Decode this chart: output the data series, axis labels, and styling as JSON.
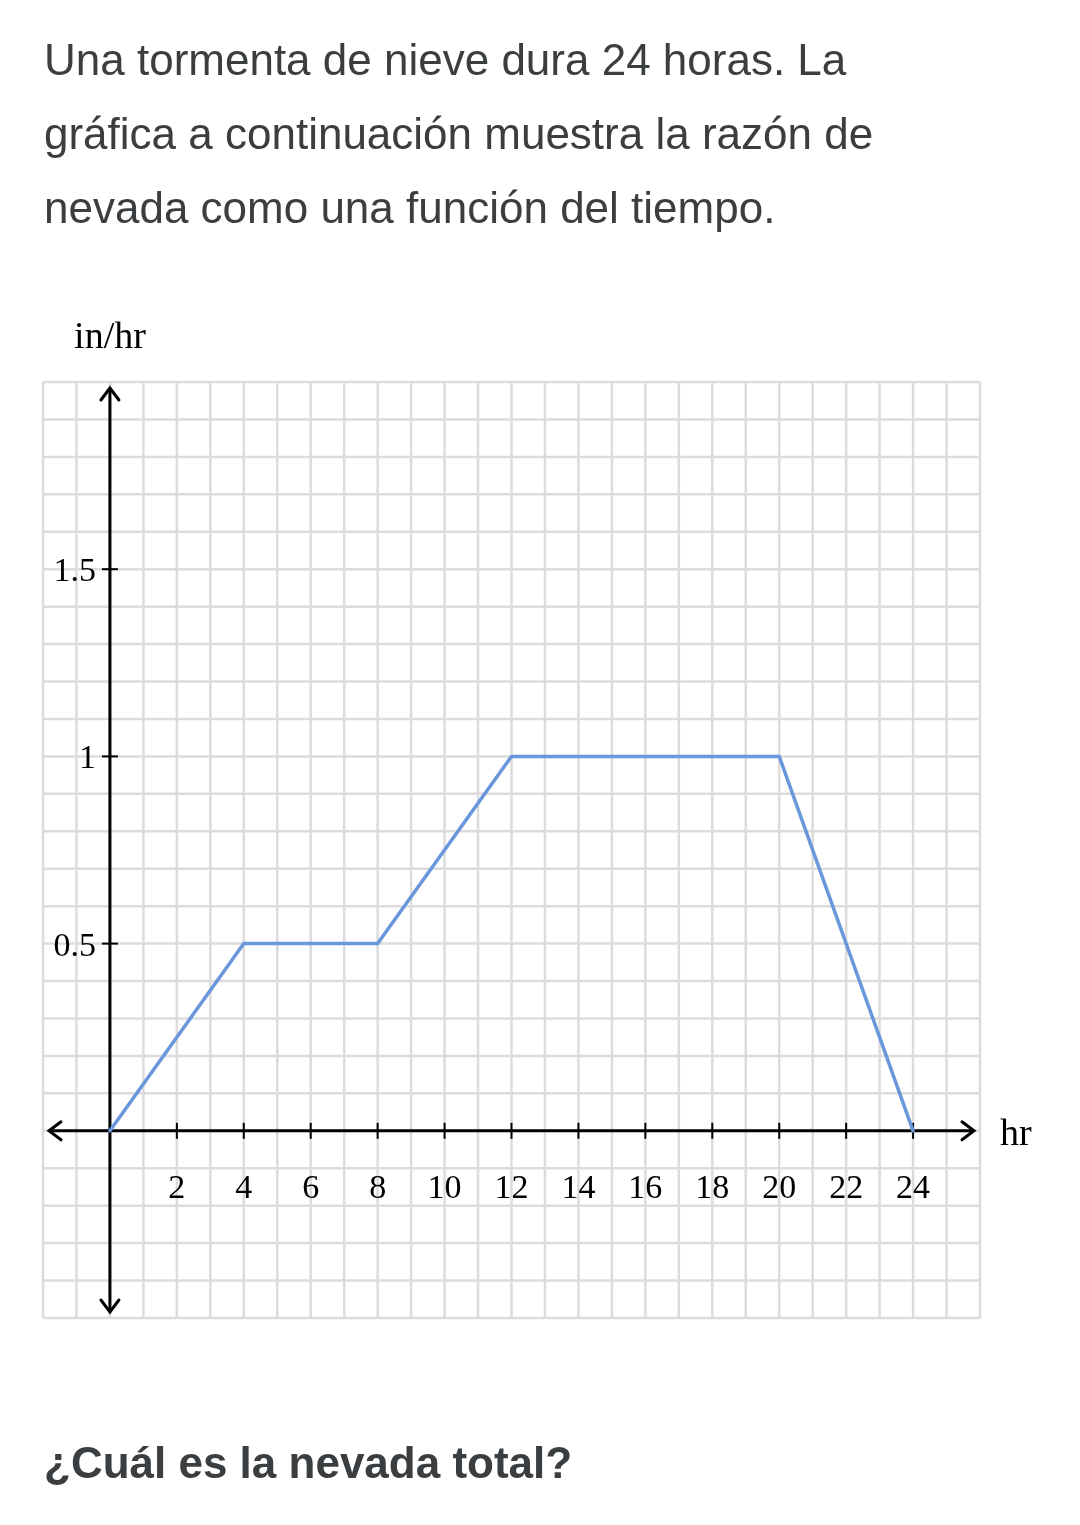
{
  "chart_data": {
    "type": "line",
    "title": "Una tormenta de nieve dura 24 horas. La gráfica a continuación muestra la razón de nevada como una función del tiempo.",
    "xlabel": "hr",
    "ylabel": "in/hr",
    "x": [
      0,
      4,
      8,
      12,
      20,
      24
    ],
    "series": [
      {
        "color": "#6a97dc",
        "values": [
          0,
          0.5,
          0.5,
          1,
          1,
          0
        ]
      }
    ],
    "xlim": [
      -2,
      26
    ],
    "ylim": [
      -0.5,
      2
    ],
    "xticks": [
      2,
      4,
      6,
      8,
      10,
      12,
      14,
      16,
      18,
      20,
      22,
      24
    ],
    "yticks": [
      0.5,
      1,
      1.5
    ],
    "grid": true,
    "marker": "none",
    "line_style": "solid",
    "annotations": [
      "¿Cuál es la nevada total?"
    ]
  }
}
